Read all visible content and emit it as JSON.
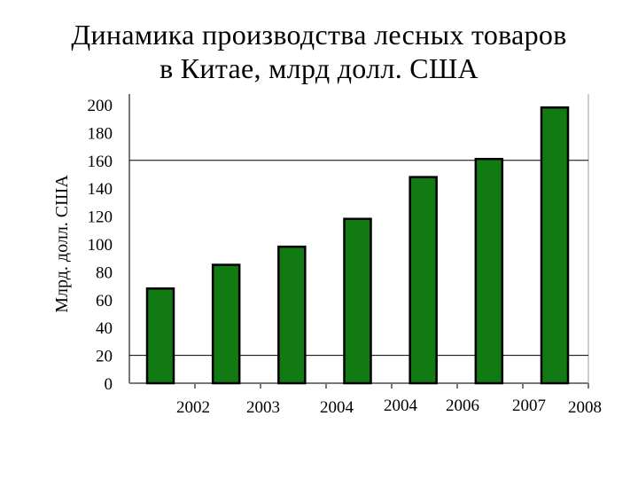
{
  "title_lines": [
    "Динамика производства лесных товаров",
    "в Китае, млрд долл. США"
  ],
  "chart_data": {
    "type": "bar",
    "title": "Динамика производства лесных товаров в Китае, млрд долл. США",
    "xlabel": "",
    "ylabel": "Млрд. долл. США",
    "ylim": [
      0,
      200
    ],
    "yticks": [
      "0",
      "20",
      "40",
      "60",
      "80",
      "100",
      "120",
      "140",
      "160",
      "180",
      "200"
    ],
    "xtick_labels": [
      "2002",
      "2003",
      "2004",
      "2004",
      "2006",
      "2007",
      "2008"
    ],
    "values": [
      68,
      85,
      98,
      118,
      148,
      161,
      198
    ],
    "reference_lines": [
      160,
      20
    ],
    "bar_color": "#127a12",
    "grid": false,
    "legend": "none"
  }
}
